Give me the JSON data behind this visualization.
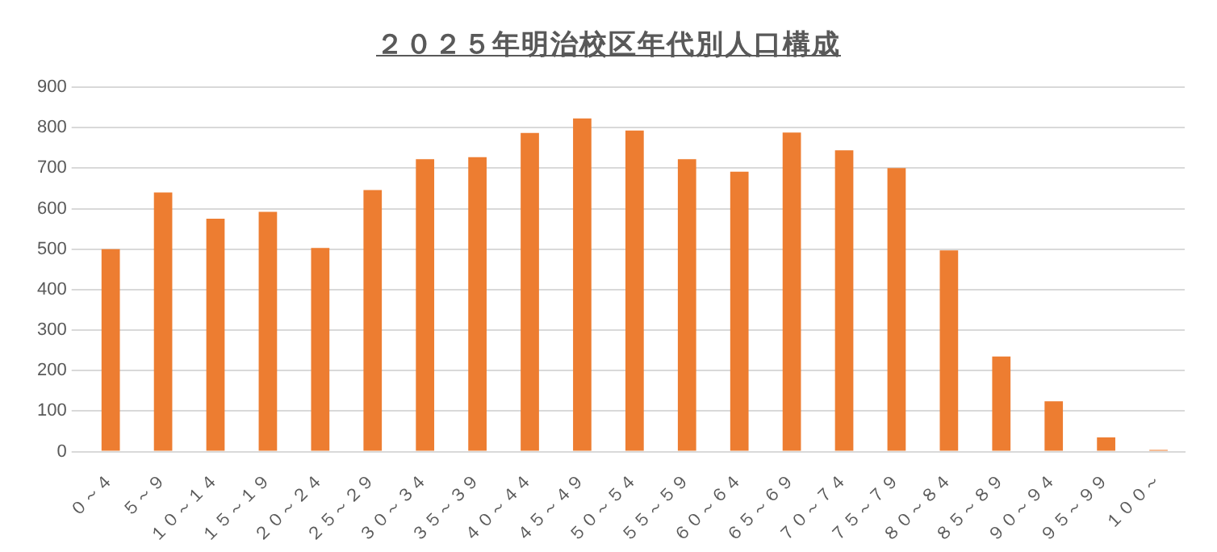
{
  "chart_data": {
    "type": "bar",
    "title": "２０２５年明治校区年代別人口構成",
    "categories": [
      "０～４",
      "５～９",
      "１０～１４",
      "１５～１９",
      "２０～２４",
      "２５～２９",
      "３０～３４",
      "３５～３９",
      "４０～４４",
      "４５～４９",
      "５０～５４",
      "５５～５９",
      "６０～６４",
      "６５～６９",
      "７０～７４",
      "７５～７９",
      "８０～８４",
      "８５～８９",
      "９０～９４",
      "９５～９９",
      "１００～"
    ],
    "values": [
      500,
      640,
      575,
      592,
      503,
      646,
      722,
      727,
      787,
      823,
      793,
      722,
      691,
      788,
      744,
      700,
      497,
      235,
      124,
      35,
      4
    ],
    "color": "#ed7d31",
    "ylim": [
      0,
      900
    ],
    "yticks": [
      0,
      100,
      200,
      300,
      400,
      500,
      600,
      700,
      800,
      900
    ],
    "grid": "y"
  }
}
